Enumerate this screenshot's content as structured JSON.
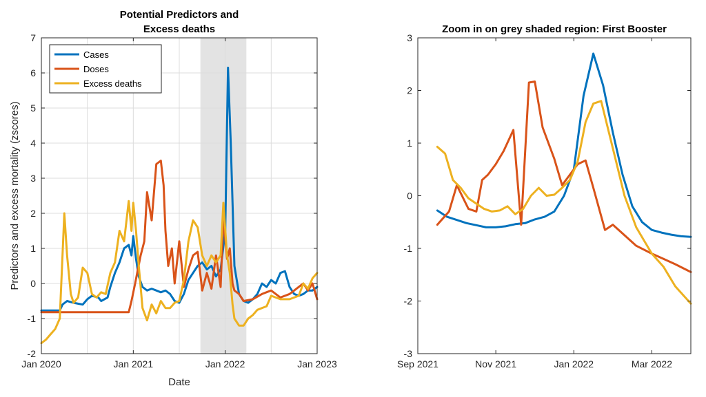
{
  "chart_data": [
    {
      "type": "line",
      "title": [
        "Potential Predictors and",
        "Excess deaths"
      ],
      "xlabel": "Date",
      "ylabel": "Predictors and excess mortality (zscores)",
      "xlim": [
        2020.0,
        2023.0
      ],
      "ylim": [
        -2,
        7
      ],
      "xticks": [
        {
          "v": 2020.0,
          "label": "Jan 2020"
        },
        {
          "v": 2021.0,
          "label": "Jan 2021"
        },
        {
          "v": 2022.0,
          "label": "Jan 2022"
        },
        {
          "v": 2023.0,
          "label": "Jan 2023"
        }
      ],
      "xgrid": [
        2020.0,
        2020.5,
        2021.0,
        2021.5,
        2022.0,
        2022.5,
        2023.0
      ],
      "yticks": [
        -2,
        -1,
        0,
        1,
        2,
        3,
        4,
        5,
        6,
        7
      ],
      "grid": true,
      "legend": "top-left",
      "shaded_region": [
        2021.73,
        2022.23
      ],
      "series": [
        {
          "name": "Cases",
          "color": "#0072BD",
          "x": [
            2020.0,
            2020.2,
            2020.23,
            2020.28,
            2020.35,
            2020.45,
            2020.5,
            2020.55,
            2020.62,
            2020.65,
            2020.72,
            2020.75,
            2020.8,
            2020.85,
            2020.9,
            2020.95,
            2020.98,
            2021.0,
            2021.03,
            2021.06,
            2021.1,
            2021.15,
            2021.2,
            2021.25,
            2021.3,
            2021.35,
            2021.4,
            2021.45,
            2021.5,
            2021.55,
            2021.6,
            2021.65,
            2021.7,
            2021.75,
            2021.8,
            2021.85,
            2021.9,
            2021.95,
            2022.0,
            2022.03,
            2022.06,
            2022.1,
            2022.15,
            2022.2,
            2022.25,
            2022.3,
            2022.35,
            2022.4,
            2022.45,
            2022.5,
            2022.55,
            2022.6,
            2022.65,
            2022.7,
            2022.75,
            2022.8,
            2022.85,
            2022.9,
            2022.95,
            2023.0
          ],
          "y": [
            -0.77,
            -0.77,
            -0.6,
            -0.5,
            -0.55,
            -0.6,
            -0.45,
            -0.35,
            -0.4,
            -0.5,
            -0.4,
            -0.1,
            0.3,
            0.6,
            1.0,
            1.1,
            0.8,
            1.35,
            0.7,
            0.2,
            -0.1,
            -0.2,
            -0.15,
            -0.2,
            -0.25,
            -0.2,
            -0.3,
            -0.5,
            -0.55,
            -0.3,
            0.1,
            0.3,
            0.5,
            0.6,
            0.4,
            0.5,
            0.2,
            0.4,
            1.5,
            6.15,
            4.0,
            0.5,
            -0.3,
            -0.5,
            -0.55,
            -0.45,
            -0.3,
            0.0,
            -0.1,
            0.1,
            0.0,
            0.3,
            0.35,
            -0.1,
            -0.3,
            -0.35,
            -0.3,
            -0.2,
            -0.2,
            -0.1
          ]
        },
        {
          "name": "Doses",
          "color": "#D95319",
          "x": [
            2020.0,
            2020.5,
            2020.95,
            2020.98,
            2021.02,
            2021.05,
            2021.08,
            2021.12,
            2021.15,
            2021.2,
            2021.25,
            2021.3,
            2021.33,
            2021.35,
            2021.38,
            2021.42,
            2021.45,
            2021.5,
            2021.55,
            2021.6,
            2021.65,
            2021.7,
            2021.75,
            2021.8,
            2021.85,
            2021.9,
            2021.95,
            2021.98,
            2022.02,
            2022.05,
            2022.08,
            2022.1,
            2022.15,
            2022.2,
            2022.3,
            2022.4,
            2022.5,
            2022.6,
            2022.7,
            2022.75,
            2022.8,
            2022.85,
            2022.9,
            2022.95,
            2023.0
          ],
          "y": [
            -0.82,
            -0.82,
            -0.82,
            -0.5,
            0.0,
            0.4,
            0.8,
            1.2,
            2.6,
            1.8,
            3.4,
            3.5,
            2.8,
            1.5,
            0.5,
            1.0,
            0.0,
            1.2,
            -0.1,
            0.4,
            0.8,
            0.9,
            -0.2,
            0.3,
            -0.15,
            0.8,
            -0.1,
            1.9,
            0.7,
            1.0,
            0.0,
            -0.2,
            -0.3,
            -0.5,
            -0.45,
            -0.3,
            -0.2,
            -0.4,
            -0.3,
            -0.2,
            -0.1,
            0.0,
            -0.2,
            0.0,
            -0.45
          ]
        },
        {
          "name": "Excess deaths",
          "color": "#EDB120",
          "x": [
            2020.0,
            2020.05,
            2020.1,
            2020.15,
            2020.2,
            2020.25,
            2020.28,
            2020.32,
            2020.35,
            2020.4,
            2020.45,
            2020.5,
            2020.55,
            2020.6,
            2020.65,
            2020.7,
            2020.75,
            2020.8,
            2020.85,
            2020.9,
            2020.95,
            2020.98,
            2021.0,
            2021.03,
            2021.06,
            2021.1,
            2021.15,
            2021.2,
            2021.25,
            2021.3,
            2021.35,
            2021.4,
            2021.45,
            2021.5,
            2021.55,
            2021.6,
            2021.65,
            2021.7,
            2021.75,
            2021.8,
            2021.85,
            2021.9,
            2021.95,
            2021.98,
            2022.02,
            2022.05,
            2022.08,
            2022.1,
            2022.15,
            2022.2,
            2022.25,
            2022.3,
            2022.35,
            2022.4,
            2022.45,
            2022.5,
            2022.6,
            2022.7,
            2022.8,
            2022.85,
            2022.9,
            2022.95,
            2023.0
          ],
          "y": [
            -1.7,
            -1.6,
            -1.45,
            -1.3,
            -1.0,
            2.0,
            0.8,
            -0.3,
            -0.55,
            -0.4,
            0.45,
            0.3,
            -0.3,
            -0.4,
            -0.25,
            -0.3,
            0.3,
            0.6,
            1.5,
            1.2,
            2.35,
            1.5,
            2.3,
            1.5,
            0.5,
            -0.7,
            -1.05,
            -0.6,
            -0.85,
            -0.5,
            -0.7,
            -0.7,
            -0.55,
            -0.5,
            0.1,
            1.2,
            1.8,
            1.6,
            0.8,
            0.5,
            0.8,
            0.6,
            0.8,
            2.3,
            0.8,
            0.3,
            -0.6,
            -1.0,
            -1.2,
            -1.2,
            -1.0,
            -0.9,
            -0.75,
            -0.7,
            -0.65,
            -0.35,
            -0.45,
            -0.45,
            -0.35,
            0.0,
            -0.15,
            0.15,
            0.3
          ]
        }
      ]
    },
    {
      "type": "line",
      "title": [
        "Zoom in on grey shaded region: First Booster"
      ],
      "xlabel": "",
      "ylabel": "",
      "xlim": [
        0,
        7
      ],
      "ylim": [
        -3,
        3
      ],
      "xticks": [
        {
          "v": 0,
          "label": "Sep 2021"
        },
        {
          "v": 2,
          "label": "Nov 2021"
        },
        {
          "v": 4,
          "label": "Jan 2022"
        },
        {
          "v": 6,
          "label": "Mar 2022"
        }
      ],
      "yticks": [
        -3,
        -2,
        -1,
        0,
        1,
        2,
        3
      ],
      "grid": false,
      "series": [
        {
          "name": "Cases",
          "color": "#0072BD",
          "x": [
            0.5,
            0.75,
            1.0,
            1.25,
            1.5,
            1.75,
            2.0,
            2.25,
            2.5,
            2.75,
            3.0,
            3.25,
            3.5,
            3.75,
            4.0,
            4.25,
            4.5,
            4.75,
            5.0,
            5.25,
            5.5,
            5.75,
            6.0,
            6.25,
            6.5,
            6.75,
            7.0
          ],
          "y": [
            -0.28,
            -0.4,
            -0.46,
            -0.52,
            -0.56,
            -0.6,
            -0.6,
            -0.58,
            -0.54,
            -0.52,
            -0.45,
            -0.4,
            -0.3,
            0.0,
            0.5,
            1.9,
            2.7,
            2.1,
            1.2,
            0.4,
            -0.2,
            -0.5,
            -0.65,
            -0.7,
            -0.74,
            -0.77,
            -0.78
          ]
        },
        {
          "name": "Doses",
          "color": "#D95319",
          "x": [
            0.5,
            0.8,
            1.0,
            1.3,
            1.5,
            1.65,
            1.8,
            2.0,
            2.2,
            2.45,
            2.65,
            2.85,
            3.0,
            3.2,
            3.5,
            3.7,
            3.9,
            4.1,
            4.3,
            4.5,
            4.8,
            5.0,
            5.3,
            5.6,
            6.0,
            6.3,
            6.6,
            7.0
          ],
          "y": [
            -0.55,
            -0.3,
            0.2,
            -0.25,
            -0.3,
            0.3,
            0.4,
            0.6,
            0.85,
            1.25,
            -0.55,
            2.15,
            2.17,
            1.3,
            0.7,
            0.2,
            0.4,
            0.6,
            0.67,
            0.15,
            -0.65,
            -0.55,
            -0.75,
            -0.95,
            -1.1,
            -1.2,
            -1.3,
            -1.45
          ]
        },
        {
          "name": "Excess deaths",
          "color": "#EDB120",
          "x": [
            0.5,
            0.7,
            0.9,
            1.1,
            1.3,
            1.5,
            1.7,
            1.9,
            2.1,
            2.3,
            2.5,
            2.7,
            2.9,
            3.1,
            3.3,
            3.5,
            3.7,
            3.9,
            4.1,
            4.3,
            4.5,
            4.7,
            5.0,
            5.3,
            5.6,
            6.0,
            6.3,
            6.6,
            7.0
          ],
          "y": [
            0.93,
            0.8,
            0.3,
            0.15,
            -0.05,
            -0.15,
            -0.25,
            -0.3,
            -0.28,
            -0.2,
            -0.35,
            -0.25,
            0.0,
            0.15,
            0.0,
            0.02,
            0.15,
            0.3,
            0.65,
            1.4,
            1.75,
            1.8,
            0.9,
            0.0,
            -0.6,
            -1.1,
            -1.35,
            -1.72,
            -2.05
          ]
        }
      ]
    }
  ]
}
